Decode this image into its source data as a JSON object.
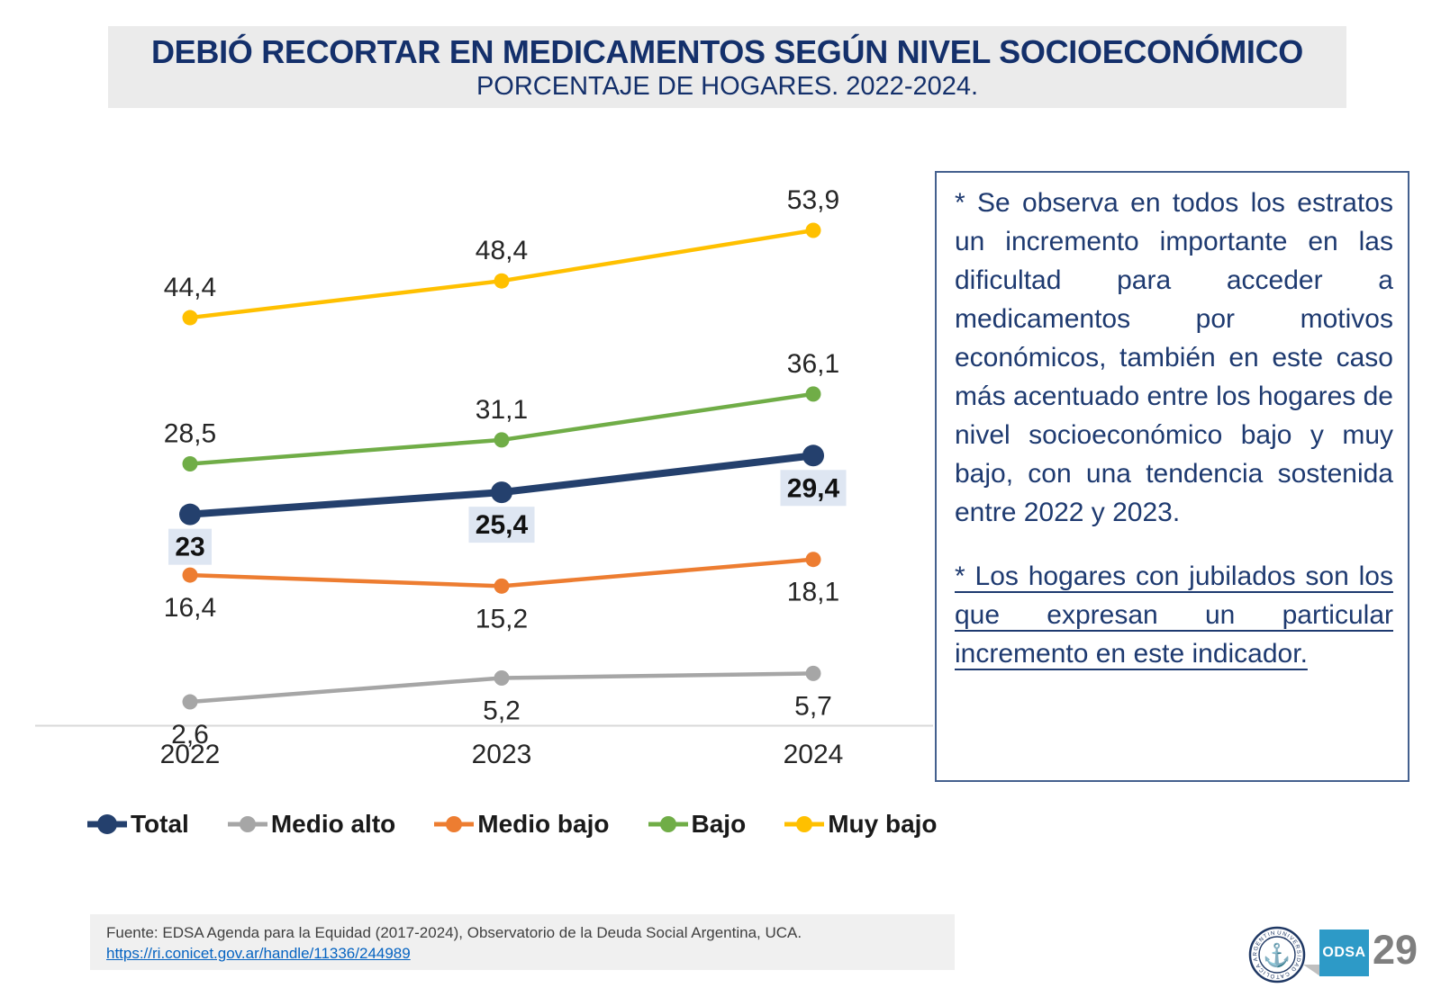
{
  "slide": {
    "title": "DEBIÓ RECORTAR EN MEDICAMENTOS SEGÚN NIVEL SOCIOECONÓMICO",
    "subtitle": "PORCENTAJE DE HOGARES. 2022-2024.",
    "page_number": "29",
    "odsa_label": "ODSA",
    "seal_ring_text": "UNIVERSIDAD CATÓLICA ARGENTINA"
  },
  "chart_data": {
    "type": "line",
    "x": [
      "2022",
      "2023",
      "2024"
    ],
    "series": [
      {
        "name": "Total",
        "color": "#24406d",
        "values": [
          23,
          25.4,
          29.4
        ],
        "labels": [
          "23",
          "25,4",
          "29,4"
        ],
        "label_style": "highlight-below",
        "emphasis": true
      },
      {
        "name": "Medio alto",
        "color": "#a6a6a6",
        "values": [
          2.6,
          5.2,
          5.7
        ],
        "labels": [
          "2,6",
          "5,2",
          "5,7"
        ],
        "label_style": "below",
        "emphasis": false
      },
      {
        "name": "Medio bajo",
        "color": "#ed7d31",
        "values": [
          16.4,
          15.2,
          18.1
        ],
        "labels": [
          "16,4",
          "15,2",
          "18,1"
        ],
        "label_style": "below",
        "emphasis": false
      },
      {
        "name": "Bajo",
        "color": "#70ad47",
        "values": [
          28.5,
          31.1,
          36.1
        ],
        "labels": [
          "28,5",
          "31,1",
          "36,1"
        ],
        "label_style": "above",
        "emphasis": false
      },
      {
        "name": "Muy bajo",
        "color": "#ffc000",
        "values": [
          44.4,
          48.4,
          53.9
        ],
        "labels": [
          "44,4",
          "48,4",
          "53,9"
        ],
        "label_style": "above",
        "emphasis": false
      }
    ],
    "title": "",
    "xlabel": "",
    "ylabel": "",
    "ylim": [
      0,
      60
    ],
    "grid": false,
    "legend_position": "bottom",
    "highlight_bg": "#dee6f2",
    "axis_color": "#d9d9d9",
    "label_color": "#262626"
  },
  "annotation": {
    "paragraph1": "* Se observa en todos los estratos un incremento importante en las dificultad para acceder a medicamentos por motivos económicos, también en este caso más acentuado entre los hogares de nivel socioeconómico bajo y muy bajo, con una tendencia sostenida entre 2022 y 2023.",
    "paragraph2": "* Los hogares con jubilados son los que expresan un particular incremento en este indicador."
  },
  "footer": {
    "source": "Fuente: EDSA Agenda para la Equidad (2017-2024), Observatorio de la Deuda Social Argentina, UCA.",
    "link": "https://ri.conicet.gov.ar/handle/11336/244989"
  }
}
